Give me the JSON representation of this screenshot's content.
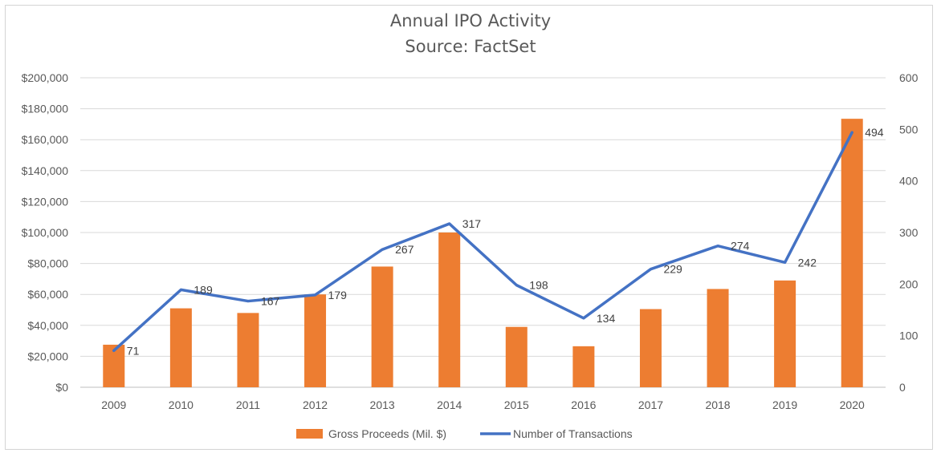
{
  "chart_data": {
    "type": "bar+line",
    "title": "Annual IPO Activity",
    "subtitle": "Source: FactSet",
    "categories": [
      "2009",
      "2010",
      "2011",
      "2012",
      "2013",
      "2014",
      "2015",
      "2016",
      "2017",
      "2018",
      "2019",
      "2020"
    ],
    "series": [
      {
        "name": "Gross Proceeds (Mil. $)",
        "type": "bar",
        "axis": "left",
        "color": "#ED7D31",
        "values": [
          27500,
          51000,
          48000,
          60000,
          78000,
          100000,
          39000,
          26500,
          50500,
          63500,
          69000,
          173500
        ]
      },
      {
        "name": "Number of Transactions",
        "type": "line",
        "axis": "right",
        "color": "#4472C4",
        "values": [
          71,
          189,
          167,
          179,
          267,
          317,
          198,
          134,
          229,
          274,
          242,
          494
        ],
        "data_labels": [
          "71",
          "189",
          "167",
          "179",
          "267",
          "317",
          "198",
          "134",
          "229",
          "274",
          "242",
          "494"
        ]
      }
    ],
    "y_left": {
      "min": 0,
      "max": 200000,
      "step": 20000,
      "tick_labels": [
        "$0",
        "$20,000",
        "$40,000",
        "$60,000",
        "$80,000",
        "$100,000",
        "$120,000",
        "$140,000",
        "$160,000",
        "$180,000",
        "$200,000"
      ]
    },
    "y_right": {
      "min": 0,
      "max": 600,
      "step": 100,
      "tick_labels": [
        "0",
        "100",
        "200",
        "300",
        "400",
        "500",
        "600"
      ]
    },
    "grid": true,
    "legend_position": "bottom"
  }
}
